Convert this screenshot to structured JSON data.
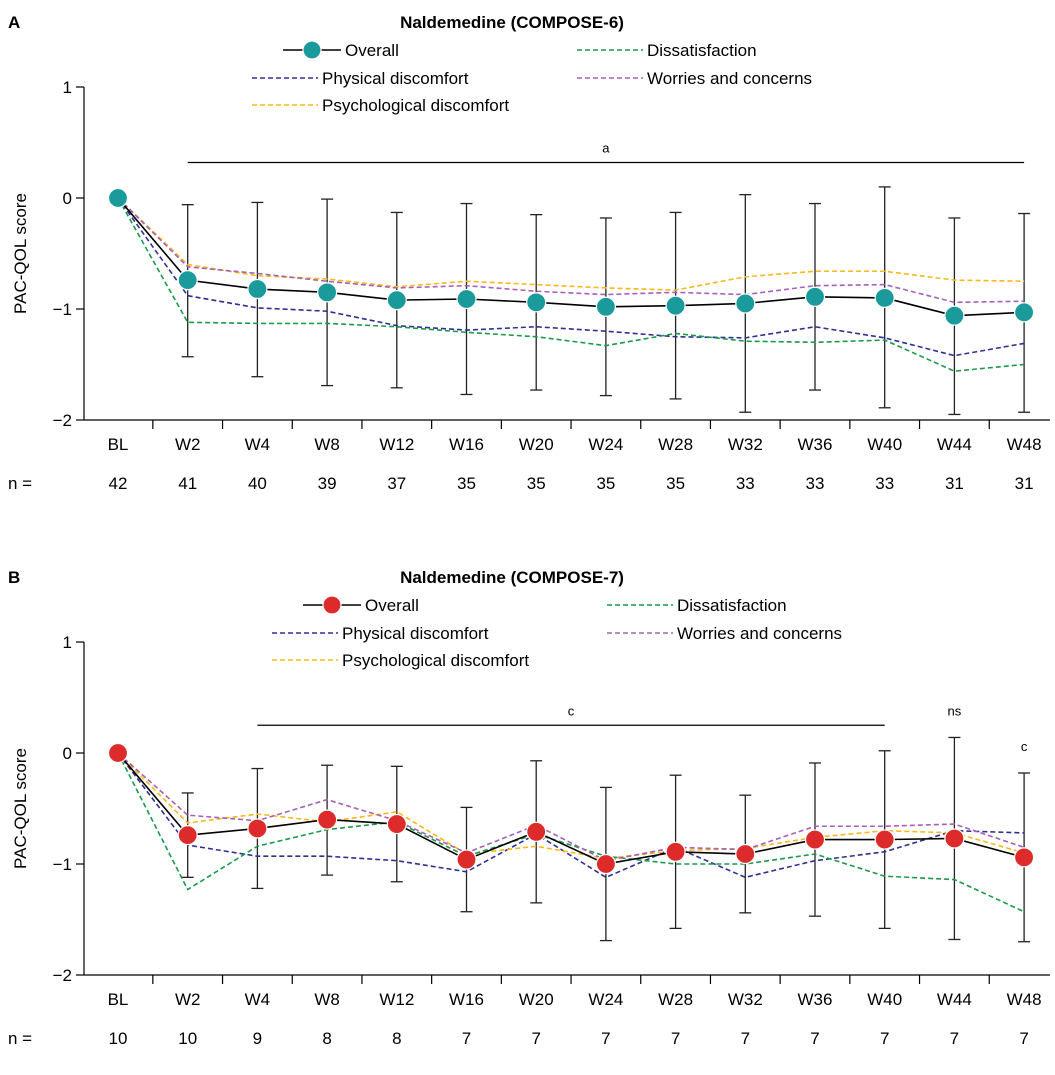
{
  "colors": {
    "overall_line": "#000000",
    "marker_a": "#1a9a9a",
    "marker_b": "#dd2a2a",
    "physical": "#2e3192",
    "psychological": "#fbb817",
    "dissatisfaction": "#1a9a4a",
    "worries": "#a761b8",
    "axis": "#000000"
  },
  "chart_data": [
    {
      "type": "line",
      "panel_letter": "A",
      "title": "Naldemedine (COMPOSE-6)",
      "ylabel": "PAC-QOL score",
      "ylim": [
        -2,
        1
      ],
      "yticks": [
        1,
        0,
        -1,
        -2
      ],
      "ytick_labels": [
        "1",
        "0",
        "−1",
        "−2"
      ],
      "categories": [
        "BL",
        "W2",
        "W4",
        "W8",
        "W12",
        "W16",
        "W20",
        "W24",
        "W28",
        "W32",
        "W36",
        "W40",
        "W44",
        "W48"
      ],
      "n_label": "n =",
      "n": [
        "42",
        "41",
        "40",
        "39",
        "37",
        "35",
        "35",
        "35",
        "35",
        "33",
        "33",
        "33",
        "31",
        "31"
      ],
      "legend": {
        "overall": "Overall",
        "physical": "Physical discomfort",
        "psychological": "Psychological discomfort",
        "dissatisfaction": "Dissatisfaction",
        "worries": "Worries and concerns"
      },
      "series": [
        {
          "key": "overall",
          "name": "Overall",
          "values": [
            0,
            -0.74,
            -0.82,
            -0.85,
            -0.92,
            -0.91,
            -0.94,
            -0.98,
            -0.97,
            -0.95,
            -0.89,
            -0.9,
            -1.06,
            -1.03
          ],
          "err_low": [
            null,
            -1.43,
            -1.61,
            -1.69,
            -1.71,
            -1.77,
            -1.73,
            -1.78,
            -1.81,
            -1.93,
            -1.73,
            -1.89,
            -1.95,
            -1.93
          ],
          "err_high": [
            null,
            -0.06,
            -0.04,
            -0.01,
            -0.13,
            -0.05,
            -0.15,
            -0.18,
            -0.13,
            0.03,
            -0.05,
            0.1,
            -0.18,
            -0.14
          ]
        },
        {
          "key": "physical",
          "name": "Physical discomfort",
          "values": [
            0,
            -0.88,
            -0.99,
            -1.02,
            -1.15,
            -1.19,
            -1.16,
            -1.2,
            -1.25,
            -1.26,
            -1.16,
            -1.26,
            -1.42,
            -1.31
          ]
        },
        {
          "key": "psychological",
          "name": "Psychological discomfort",
          "values": [
            0,
            -0.6,
            -0.7,
            -0.73,
            -0.8,
            -0.75,
            -0.78,
            -0.81,
            -0.83,
            -0.71,
            -0.66,
            -0.66,
            -0.74,
            -0.75
          ]
        },
        {
          "key": "dissatisfaction",
          "name": "Dissatisfaction",
          "values": [
            0,
            -1.12,
            -1.13,
            -1.13,
            -1.16,
            -1.21,
            -1.25,
            -1.33,
            -1.22,
            -1.29,
            -1.3,
            -1.28,
            -1.56,
            -1.5
          ]
        },
        {
          "key": "worries",
          "name": "Worries and concerns",
          "values": [
            0,
            -0.62,
            -0.68,
            -0.75,
            -0.81,
            -0.79,
            -0.84,
            -0.87,
            -0.85,
            -0.87,
            -0.79,
            -0.78,
            -0.94,
            -0.93
          ]
        }
      ],
      "annotations": [
        {
          "text": "a",
          "x_from": "W2",
          "x_to": "W48",
          "y": 0.32
        }
      ]
    },
    {
      "type": "line",
      "panel_letter": "B",
      "title": "Naldemedine (COMPOSE-7)",
      "ylabel": "PAC-QOL score",
      "ylim": [
        -2,
        1
      ],
      "yticks": [
        1,
        0,
        -1,
        -2
      ],
      "ytick_labels": [
        "1",
        "0",
        "−1",
        "−2"
      ],
      "categories": [
        "BL",
        "W2",
        "W4",
        "W8",
        "W12",
        "W16",
        "W20",
        "W24",
        "W28",
        "W32",
        "W36",
        "W40",
        "W44",
        "W48"
      ],
      "n_label": "n =",
      "n": [
        "10",
        "10",
        "9",
        "8",
        "8",
        "7",
        "7",
        "7",
        "7",
        "7",
        "7",
        "7",
        "7",
        "7"
      ],
      "legend": {
        "overall": "Overall",
        "physical": "Physical discomfort",
        "psychological": "Psychological discomfort",
        "dissatisfaction": "Dissatisfaction",
        "worries": "Worries and concerns"
      },
      "series": [
        {
          "key": "overall",
          "name": "Overall",
          "values": [
            0,
            -0.74,
            -0.68,
            -0.6,
            -0.64,
            -0.96,
            -0.71,
            -1.0,
            -0.89,
            -0.91,
            -0.78,
            -0.78,
            -0.77,
            -0.94
          ],
          "err_low": [
            null,
            -1.12,
            -1.22,
            -1.1,
            -1.16,
            -1.43,
            -1.35,
            -1.69,
            -1.58,
            -1.44,
            -1.47,
            -1.58,
            -1.68,
            -1.7
          ],
          "err_high": [
            null,
            -0.36,
            -0.14,
            -0.11,
            -0.12,
            -0.49,
            -0.07,
            -0.31,
            -0.2,
            -0.38,
            -0.09,
            0.02,
            0.14,
            -0.18
          ]
        },
        {
          "key": "physical",
          "name": "Physical discomfort",
          "values": [
            0,
            -0.83,
            -0.93,
            -0.93,
            -0.97,
            -1.07,
            -0.73,
            -1.12,
            -0.85,
            -1.12,
            -0.97,
            -0.89,
            -0.7,
            -0.72
          ]
        },
        {
          "key": "psychological",
          "name": "Psychological discomfort",
          "values": [
            0,
            -0.63,
            -0.55,
            -0.62,
            -0.53,
            -0.91,
            -0.84,
            -0.95,
            -0.88,
            -0.86,
            -0.76,
            -0.7,
            -0.72,
            -0.9
          ]
        },
        {
          "key": "dissatisfaction",
          "name": "Dissatisfaction",
          "values": [
            0,
            -1.23,
            -0.84,
            -0.69,
            -0.62,
            -0.93,
            -0.73,
            -0.93,
            -1.0,
            -1.0,
            -0.91,
            -1.11,
            -1.14,
            -1.43
          ]
        },
        {
          "key": "worries",
          "name": "Worries and concerns",
          "values": [
            0,
            -0.56,
            -0.61,
            -0.42,
            -0.61,
            -0.9,
            -0.65,
            -0.97,
            -0.85,
            -0.87,
            -0.66,
            -0.66,
            -0.64,
            -0.85
          ]
        }
      ],
      "annotations": [
        {
          "text": "c",
          "x_from": "W4",
          "x_to": "W40",
          "y": 0.25
        },
        {
          "text": "ns",
          "x_at": "W44",
          "y": 0.25
        },
        {
          "text": "c",
          "x_at": "W48",
          "y": -0.07
        }
      ]
    }
  ]
}
